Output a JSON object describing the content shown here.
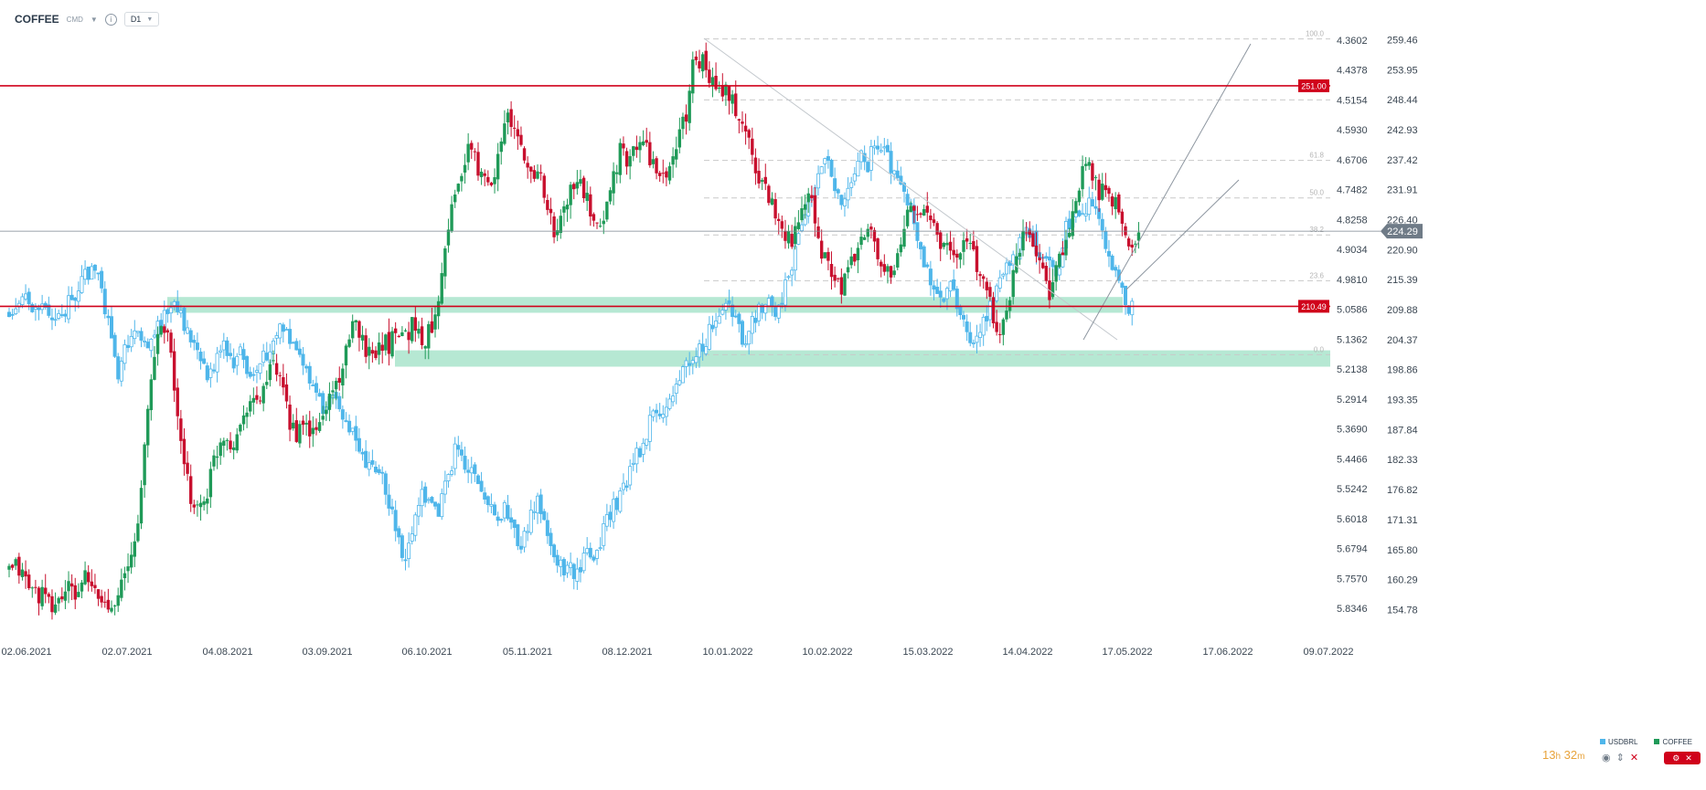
{
  "header": {
    "symbol": "COFFEE",
    "market": "CMD",
    "timeframe": "D1"
  },
  "timer": {
    "hours": "13",
    "h_unit": "h",
    "minutes": "32",
    "m_unit": "m"
  },
  "colors": {
    "coffee_up": "#1f9a58",
    "coffee_down": "#c8102e",
    "usdbrl": "#4fb6ea",
    "support_zone": "#9ee0c4",
    "resistance_line": "#d0021b",
    "price_tag": "#6f7b87"
  },
  "chart_data": {
    "type": "candlestick",
    "title": "",
    "series": [
      {
        "name": "COFFEE",
        "color": "#1f9a58",
        "axis": "right"
      },
      {
        "name": "USDBRL",
        "color": "#4fb6ea",
        "axis": "left-inverted"
      }
    ],
    "x_ticks": [
      "02.06.2021",
      "02.07.2021",
      "04.08.2021",
      "03.09.2021",
      "06.10.2021",
      "05.11.2021",
      "08.12.2021",
      "10.01.2022",
      "10.02.2022",
      "15.03.2022",
      "14.04.2022",
      "17.05.2022",
      "17.06.2022",
      "09.07.2022"
    ],
    "coffee_axis": {
      "ticks": [
        "259.46",
        "253.95",
        "248.44",
        "242.93",
        "237.42",
        "231.91",
        "226.40",
        "220.90",
        "215.39",
        "209.88",
        "204.37",
        "198.86",
        "193.35",
        "187.84",
        "182.33",
        "176.82",
        "171.31",
        "165.80",
        "160.29",
        "154.78"
      ],
      "range": [
        151.0,
        263.4
      ]
    },
    "usdbrl_axis": {
      "ticks": [
        "4.3602",
        "4.4378",
        "4.5154",
        "4.5930",
        "4.6706",
        "4.7482",
        "4.8258",
        "4.9034",
        "4.9810",
        "5.0586",
        "5.1362",
        "5.2138",
        "5.2914",
        "5.3690",
        "5.4466",
        "5.5242",
        "5.6018",
        "5.6794",
        "5.7570",
        "5.8346"
      ],
      "range": [
        4.3033,
        5.8915
      ]
    },
    "current_price": "224.29",
    "levels": [
      {
        "label": "251.00",
        "value": 251.0
      },
      {
        "label": "210.49",
        "value": 210.49
      }
    ],
    "support_zones": [
      {
        "from": 209.3,
        "to": 212.2
      },
      {
        "from": 199.4,
        "to": 202.4
      }
    ],
    "fibonacci": [
      {
        "label": "100.0",
        "value": 259.6
      },
      {
        "label": "",
        "value": 248.4
      },
      {
        "label": "61.8",
        "value": 237.3
      },
      {
        "label": "50.0",
        "value": 230.4
      },
      {
        "label": "38.2",
        "value": 223.6
      },
      {
        "label": "23.6",
        "value": 215.2
      },
      {
        "label": "0.0",
        "value": 201.6
      }
    ],
    "coffee_path": [
      [
        0,
        161.5
      ],
      [
        5,
        162.8
      ],
      [
        10,
        160.2
      ],
      [
        15,
        158.0
      ],
      [
        20,
        157.5
      ],
      [
        25,
        155.1
      ],
      [
        30,
        156.4
      ],
      [
        35,
        158.9
      ],
      [
        40,
        157.2
      ],
      [
        45,
        161.0
      ],
      [
        50,
        158.4
      ],
      [
        55,
        156.8
      ],
      [
        60,
        155.2
      ],
      [
        65,
        157.9
      ],
      [
        70,
        160.5
      ],
      [
        75,
        165.2
      ],
      [
        80,
        176.5
      ],
      [
        85,
        195.3
      ],
      [
        90,
        205.6
      ],
      [
        95,
        207.9
      ],
      [
        100,
        196.0
      ],
      [
        105,
        181.8
      ],
      [
        110,
        175.4
      ],
      [
        115,
        173.2
      ],
      [
        120,
        176.6
      ],
      [
        125,
        183.5
      ],
      [
        130,
        187.2
      ],
      [
        135,
        185.3
      ],
      [
        140,
        188.6
      ],
      [
        145,
        193.9
      ],
      [
        150,
        192.3
      ],
      [
        155,
        196.4
      ],
      [
        160,
        199.6
      ],
      [
        165,
        195.2
      ],
      [
        170,
        189.4
      ],
      [
        175,
        186.9
      ],
      [
        180,
        188.3
      ],
      [
        185,
        186.7
      ],
      [
        190,
        190.5
      ],
      [
        195,
        194.7
      ],
      [
        200,
        197.8
      ],
      [
        205,
        202.3
      ],
      [
        210,
        208.8
      ],
      [
        215,
        203.1
      ],
      [
        220,
        201.5
      ],
      [
        225,
        204.3
      ],
      [
        230,
        203.4
      ],
      [
        235,
        207.2
      ],
      [
        240,
        204.9
      ],
      [
        245,
        208.0
      ],
      [
        250,
        203.6
      ],
      [
        255,
        206.1
      ],
      [
        260,
        212.7
      ],
      [
        265,
        224.8
      ],
      [
        270,
        230.5
      ],
      [
        275,
        236.6
      ],
      [
        280,
        239.8
      ],
      [
        285,
        234.7
      ],
      [
        290,
        232.2
      ],
      [
        295,
        236.9
      ],
      [
        300,
        245.6
      ],
      [
        305,
        243.2
      ],
      [
        310,
        239.4
      ],
      [
        315,
        234.6
      ],
      [
        320,
        236.2
      ],
      [
        325,
        230.4
      ],
      [
        330,
        223.1
      ],
      [
        335,
        227.2
      ],
      [
        340,
        231.8
      ],
      [
        345,
        233.4
      ],
      [
        350,
        229.8
      ],
      [
        355,
        223.0
      ],
      [
        360,
        227.2
      ],
      [
        365,
        233.6
      ],
      [
        370,
        238.9
      ],
      [
        375,
        236.1
      ],
      [
        380,
        240.8
      ],
      [
        385,
        239.6
      ],
      [
        390,
        237.2
      ],
      [
        395,
        232.4
      ],
      [
        400,
        236.3
      ],
      [
        405,
        240.8
      ],
      [
        410,
        245.9
      ],
      [
        415,
        256.9
      ],
      [
        420,
        255.3
      ],
      [
        425,
        251.7
      ],
      [
        430,
        249.6
      ],
      [
        435,
        249.9
      ],
      [
        440,
        246.1
      ],
      [
        445,
        243.6
      ],
      [
        450,
        238.3
      ],
      [
        455,
        233.4
      ],
      [
        460,
        230.8
      ],
      [
        465,
        226.9
      ],
      [
        470,
        224.2
      ],
      [
        475,
        222.5
      ],
      [
        480,
        227.6
      ],
      [
        485,
        230.8
      ],
      [
        490,
        221.4
      ],
      [
        495,
        218.9
      ],
      [
        500,
        214.7
      ],
      [
        505,
        214.2
      ],
      [
        510,
        218.0
      ],
      [
        515,
        222.1
      ],
      [
        520,
        224.9
      ],
      [
        525,
        220.2
      ],
      [
        530,
        217.2
      ],
      [
        535,
        214.8
      ],
      [
        540,
        222.1
      ],
      [
        545,
        229.3
      ],
      [
        550,
        229.0
      ],
      [
        555,
        227.0
      ],
      [
        560,
        225.1
      ],
      [
        565,
        221.6
      ],
      [
        570,
        220.5
      ],
      [
        575,
        219.4
      ],
      [
        580,
        224.1
      ],
      [
        585,
        218.5
      ],
      [
        590,
        214.3
      ],
      [
        595,
        209.4
      ],
      [
        600,
        204.8
      ],
      [
        605,
        211.5
      ],
      [
        610,
        218.6
      ],
      [
        615,
        225.9
      ],
      [
        620,
        222.8
      ],
      [
        625,
        218.2
      ],
      [
        630,
        213.4
      ],
      [
        635,
        218.2
      ],
      [
        640,
        222.3
      ],
      [
        645,
        227.3
      ],
      [
        650,
        234.4
      ],
      [
        655,
        235.9
      ],
      [
        660,
        231.7
      ],
      [
        665,
        230.5
      ],
      [
        670,
        229.3
      ],
      [
        675,
        224.3
      ],
      [
        680,
        220.6
      ],
      [
        685,
        224.5
      ]
    ],
    "usdbrl_path": [
      [
        0,
        5.06
      ],
      [
        5,
        5.05
      ],
      [
        10,
        5.04
      ],
      [
        15,
        5.06
      ],
      [
        20,
        5.05
      ],
      [
        25,
        5.07
      ],
      [
        30,
        5.08
      ],
      [
        35,
        5.05
      ],
      [
        40,
        5.02
      ],
      [
        45,
        4.98
      ],
      [
        50,
        4.96
      ],
      [
        55,
        4.99
      ],
      [
        60,
        5.09
      ],
      [
        65,
        5.23
      ],
      [
        70,
        5.17
      ],
      [
        75,
        5.1
      ],
      [
        80,
        5.12
      ],
      [
        85,
        5.15
      ],
      [
        90,
        5.1
      ],
      [
        95,
        5.07
      ],
      [
        100,
        5.06
      ],
      [
        105,
        5.09
      ],
      [
        110,
        5.13
      ],
      [
        115,
        5.19
      ],
      [
        120,
        5.24
      ],
      [
        125,
        5.2
      ],
      [
        130,
        5.16
      ],
      [
        135,
        5.21
      ],
      [
        140,
        5.17
      ],
      [
        145,
        5.24
      ],
      [
        150,
        5.22
      ],
      [
        155,
        5.18
      ],
      [
        160,
        5.14
      ],
      [
        165,
        5.1
      ],
      [
        170,
        5.15
      ],
      [
        175,
        5.19
      ],
      [
        180,
        5.22
      ],
      [
        185,
        5.27
      ],
      [
        190,
        5.32
      ],
      [
        195,
        5.25
      ],
      [
        200,
        5.3
      ],
      [
        205,
        5.37
      ],
      [
        210,
        5.4
      ],
      [
        215,
        5.46
      ],
      [
        220,
        5.44
      ],
      [
        225,
        5.49
      ],
      [
        230,
        5.56
      ],
      [
        235,
        5.65
      ],
      [
        240,
        5.72
      ],
      [
        245,
        5.61
      ],
      [
        250,
        5.52
      ],
      [
        255,
        5.57
      ],
      [
        260,
        5.59
      ],
      [
        265,
        5.51
      ],
      [
        270,
        5.43
      ],
      [
        275,
        5.45
      ],
      [
        280,
        5.49
      ],
      [
        285,
        5.51
      ],
      [
        290,
        5.56
      ],
      [
        295,
        5.62
      ],
      [
        300,
        5.58
      ],
      [
        305,
        5.63
      ],
      [
        310,
        5.68
      ],
      [
        315,
        5.61
      ],
      [
        320,
        5.56
      ],
      [
        325,
        5.63
      ],
      [
        330,
        5.69
      ],
      [
        335,
        5.74
      ],
      [
        340,
        5.72
      ],
      [
        345,
        5.76
      ],
      [
        350,
        5.68
      ],
      [
        355,
        5.71
      ],
      [
        360,
        5.62
      ],
      [
        365,
        5.58
      ],
      [
        370,
        5.55
      ],
      [
        375,
        5.49
      ],
      [
        380,
        5.44
      ],
      [
        385,
        5.39
      ],
      [
        390,
        5.33
      ],
      [
        395,
        5.36
      ],
      [
        400,
        5.28
      ],
      [
        405,
        5.24
      ],
      [
        410,
        5.21
      ],
      [
        415,
        5.18
      ],
      [
        420,
        5.15
      ],
      [
        425,
        5.11
      ],
      [
        430,
        5.06
      ],
      [
        435,
        5.04
      ],
      [
        440,
        5.1
      ],
      [
        445,
        5.14
      ],
      [
        450,
        5.08
      ],
      [
        455,
        5.06
      ],
      [
        460,
        5.02
      ],
      [
        465,
        5.07
      ],
      [
        470,
        5.0
      ],
      [
        475,
        4.93
      ],
      [
        480,
        4.85
      ],
      [
        485,
        4.76
      ],
      [
        490,
        4.7
      ],
      [
        495,
        4.68
      ],
      [
        500,
        4.74
      ],
      [
        505,
        4.79
      ],
      [
        510,
        4.72
      ],
      [
        515,
        4.65
      ],
      [
        520,
        4.68
      ],
      [
        525,
        4.62
      ],
      [
        530,
        4.65
      ],
      [
        535,
        4.7
      ],
      [
        540,
        4.75
      ],
      [
        545,
        4.77
      ],
      [
        550,
        4.9
      ],
      [
        555,
        4.96
      ],
      [
        560,
        4.99
      ],
      [
        565,
        5.03
      ],
      [
        570,
        4.97
      ],
      [
        575,
        5.07
      ],
      [
        580,
        5.13
      ],
      [
        585,
        5.16
      ],
      [
        590,
        5.1
      ],
      [
        595,
        5.03
      ],
      [
        600,
        4.99
      ],
      [
        605,
        4.95
      ],
      [
        610,
        4.91
      ],
      [
        615,
        4.86
      ],
      [
        620,
        4.88
      ],
      [
        625,
        4.94
      ],
      [
        630,
        4.93
      ],
      [
        635,
        4.98
      ],
      [
        640,
        4.85
      ],
      [
        645,
        4.8
      ],
      [
        650,
        4.82
      ],
      [
        655,
        4.78
      ],
      [
        660,
        4.84
      ],
      [
        665,
        4.92
      ],
      [
        670,
        4.96
      ],
      [
        675,
        5.03
      ],
      [
        680,
        5.06
      ]
    ]
  }
}
